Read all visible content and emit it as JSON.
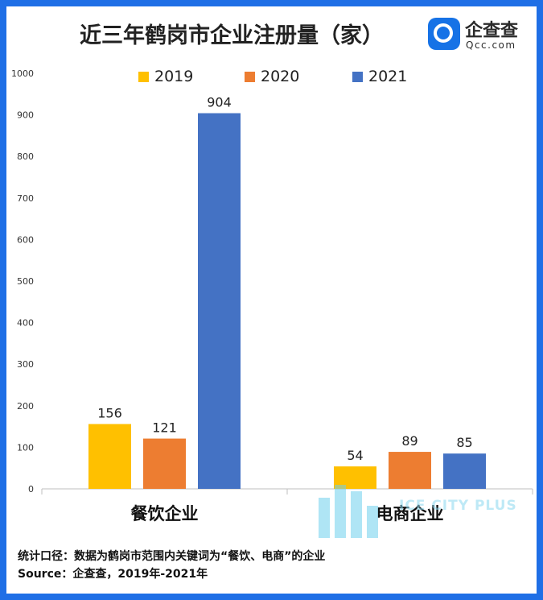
{
  "title": "近三年鹤岗市企业注册量（家）",
  "logo": {
    "name": "企查查",
    "url": "Qcc.com",
    "icon": "qcc-logo-icon"
  },
  "watermark": {
    "text": "ICE CITY PLUS",
    "icon": "ice-city-logo-icon"
  },
  "notes": {
    "line1": "统计口径：数据为鹤岗市范围内关键词为“餐饮、电商”的企业",
    "line2": "Source：企查查，2019年-2021年"
  },
  "chart_data": {
    "type": "bar",
    "title": "近三年鹤岗市企业注册量（家）",
    "xlabel": "",
    "ylabel": "",
    "categories": [
      "餐饮企业",
      "电商企业"
    ],
    "series": [
      {
        "name": "2019",
        "color": "#ffc000",
        "values": [
          156,
          54
        ]
      },
      {
        "name": "2020",
        "color": "#ed7d31",
        "values": [
          121,
          89
        ]
      },
      {
        "name": "2021",
        "color": "#4472c4",
        "values": [
          904,
          85
        ]
      }
    ],
    "ylim": [
      0,
      1000
    ],
    "yticks": [
      "0",
      "100",
      "200",
      "300",
      "400",
      "500",
      "600",
      "700",
      "800",
      "900",
      "1000"
    ],
    "grid": false,
    "legend": "top"
  }
}
